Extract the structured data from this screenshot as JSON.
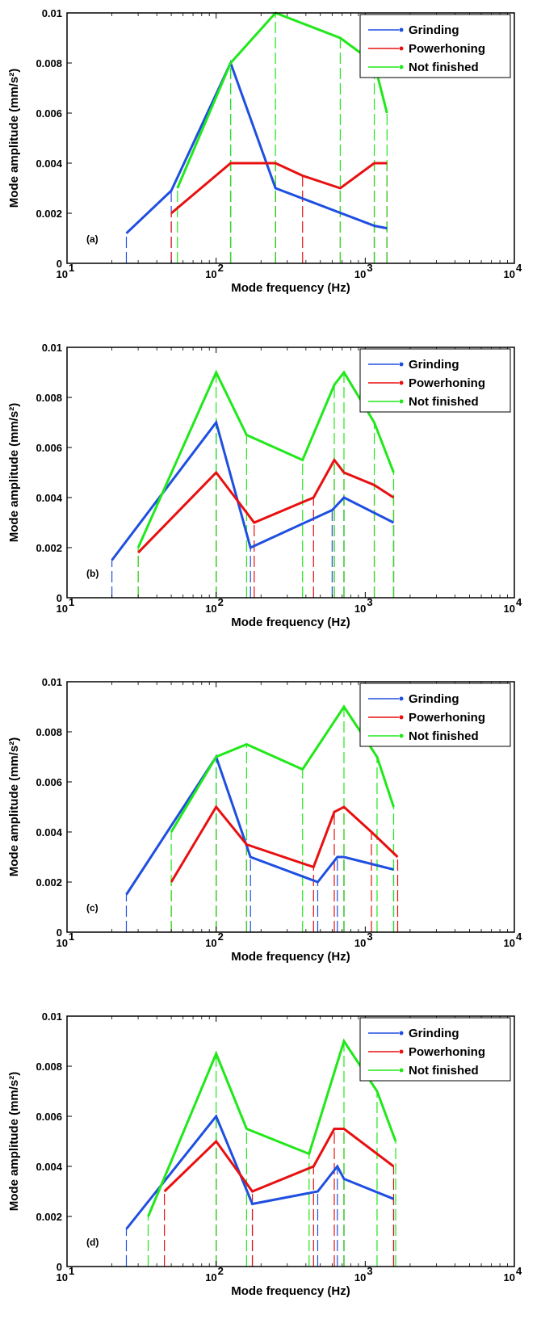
{
  "colors": {
    "Grinding": "#1f4fe0",
    "Powerhoning": "#e81010",
    "Not finished": "#20e81a"
  },
  "chart_data": [
    {
      "type": "line",
      "panel_label": "(a)",
      "xlabel": "Mode frequency (Hz)",
      "ylabel": "Mode amplitude (mm/s²)",
      "xscale": "log",
      "xlim": [
        10,
        10000
      ],
      "ylim": [
        0,
        0.01
      ],
      "xticks": [
        "10",
        "10",
        "10",
        "10"
      ],
      "xtick_exponents": [
        "1",
        "2",
        "3",
        "4"
      ],
      "yticks": [
        "0",
        "0.002",
        "0.004",
        "0.006",
        "0.008",
        "0.01"
      ],
      "legend": {
        "position": "top-right",
        "entries": [
          "Grinding",
          "Powerhoning",
          "Not finished"
        ]
      },
      "stems": "dashed vertical lines from each mode point to the x-axis",
      "series": [
        {
          "name": "Grinding",
          "x": [
            25,
            50,
            125,
            250,
            1150,
            1400
          ],
          "y": [
            0.0012,
            0.0029,
            0.008,
            0.003,
            0.0015,
            0.0014
          ]
        },
        {
          "name": "Powerhoning",
          "x": [
            50,
            125,
            250,
            380,
            680,
            1150,
            1400
          ],
          "y": [
            0.002,
            0.004,
            0.004,
            0.0035,
            0.003,
            0.004,
            0.004
          ]
        },
        {
          "name": "Not finished",
          "x": [
            55,
            125,
            250,
            680,
            1150,
            1400
          ],
          "y": [
            0.003,
            0.008,
            0.01,
            0.009,
            0.008,
            0.006
          ]
        }
      ]
    },
    {
      "type": "line",
      "panel_label": "(b)",
      "xlabel": "Mode frequency (Hz)",
      "ylabel": "Mode amplitude (mm/s²)",
      "xscale": "log",
      "xlim": [
        10,
        10000
      ],
      "ylim": [
        0,
        0.01
      ],
      "xticks": [
        "10",
        "10",
        "10",
        "10"
      ],
      "xtick_exponents": [
        "1",
        "2",
        "3",
        "4"
      ],
      "yticks": [
        "0",
        "0.002",
        "0.004",
        "0.006",
        "0.008",
        "0.01"
      ],
      "legend": {
        "position": "top-right",
        "entries": [
          "Grinding",
          "Powerhoning",
          "Not finished"
        ]
      },
      "stems": "dashed vertical lines from each mode point to the x-axis",
      "series": [
        {
          "name": "Grinding",
          "x": [
            20,
            100,
            170,
            600,
            720,
            1550
          ],
          "y": [
            0.0015,
            0.007,
            0.002,
            0.0035,
            0.004,
            0.003
          ]
        },
        {
          "name": "Powerhoning",
          "x": [
            30,
            100,
            180,
            450,
            620,
            720,
            1150,
            1550
          ],
          "y": [
            0.0018,
            0.005,
            0.003,
            0.004,
            0.0055,
            0.005,
            0.0045,
            0.004
          ]
        },
        {
          "name": "Not finished",
          "x": [
            30,
            100,
            160,
            380,
            620,
            720,
            1150,
            1550
          ],
          "y": [
            0.002,
            0.009,
            0.0065,
            0.0055,
            0.0085,
            0.009,
            0.007,
            0.005
          ]
        }
      ]
    },
    {
      "type": "line",
      "panel_label": "(c)",
      "xlabel": "Mode frequency (Hz)",
      "ylabel": "Mode amplitude (mm/s²)",
      "xscale": "log",
      "xlim": [
        10,
        10000
      ],
      "ylim": [
        0,
        0.01
      ],
      "xticks": [
        "10",
        "10",
        "10",
        "10"
      ],
      "xtick_exponents": [
        "1",
        "2",
        "3",
        "4"
      ],
      "yticks": [
        "0",
        "0.002",
        "0.004",
        "0.006",
        "0.008",
        "0.01"
      ],
      "legend": {
        "position": "top-right",
        "entries": [
          "Grinding",
          "Powerhoning",
          "Not finished"
        ]
      },
      "stems": "dashed vertical lines from each mode point to the x-axis",
      "series": [
        {
          "name": "Grinding",
          "x": [
            25,
            100,
            170,
            480,
            650,
            720,
            1550
          ],
          "y": [
            0.0015,
            0.007,
            0.003,
            0.002,
            0.003,
            0.003,
            0.0025
          ]
        },
        {
          "name": "Powerhoning",
          "x": [
            50,
            100,
            160,
            450,
            620,
            720,
            1100,
            1650
          ],
          "y": [
            0.002,
            0.005,
            0.0035,
            0.0026,
            0.0048,
            0.005,
            0.004,
            0.003
          ]
        },
        {
          "name": "Not finished",
          "x": [
            50,
            100,
            160,
            380,
            720,
            1200,
            1550
          ],
          "y": [
            0.004,
            0.007,
            0.0075,
            0.0065,
            0.009,
            0.007,
            0.005
          ]
        }
      ]
    },
    {
      "type": "line",
      "panel_label": "(d)",
      "xlabel": "Mode frequency (Hz)",
      "ylabel": "Mode amplitude (mm/s²)",
      "xscale": "log",
      "xlim": [
        10,
        10000
      ],
      "ylim": [
        0,
        0.01
      ],
      "xticks": [
        "10",
        "10",
        "10",
        "10"
      ],
      "xtick_exponents": [
        "1",
        "2",
        "3",
        "4"
      ],
      "yticks": [
        "0",
        "0.002",
        "0.004",
        "0.006",
        "0.008",
        "0.01"
      ],
      "legend": {
        "position": "top-right",
        "entries": [
          "Grinding",
          "Powerhoning",
          "Not finished"
        ]
      },
      "stems": "dashed vertical lines from each mode point to the x-axis",
      "series": [
        {
          "name": "Grinding",
          "x": [
            25,
            100,
            175,
            480,
            650,
            720,
            1550
          ],
          "y": [
            0.0015,
            0.006,
            0.0025,
            0.003,
            0.004,
            0.0035,
            0.0027
          ]
        },
        {
          "name": "Powerhoning",
          "x": [
            45,
            100,
            175,
            450,
            620,
            720,
            1550
          ],
          "y": [
            0.003,
            0.005,
            0.003,
            0.004,
            0.0055,
            0.0055,
            0.004
          ]
        },
        {
          "name": "Not finished",
          "x": [
            35,
            100,
            160,
            420,
            720,
            1200,
            1600
          ],
          "y": [
            0.002,
            0.0085,
            0.0055,
            0.0045,
            0.009,
            0.007,
            0.005
          ]
        }
      ]
    }
  ]
}
